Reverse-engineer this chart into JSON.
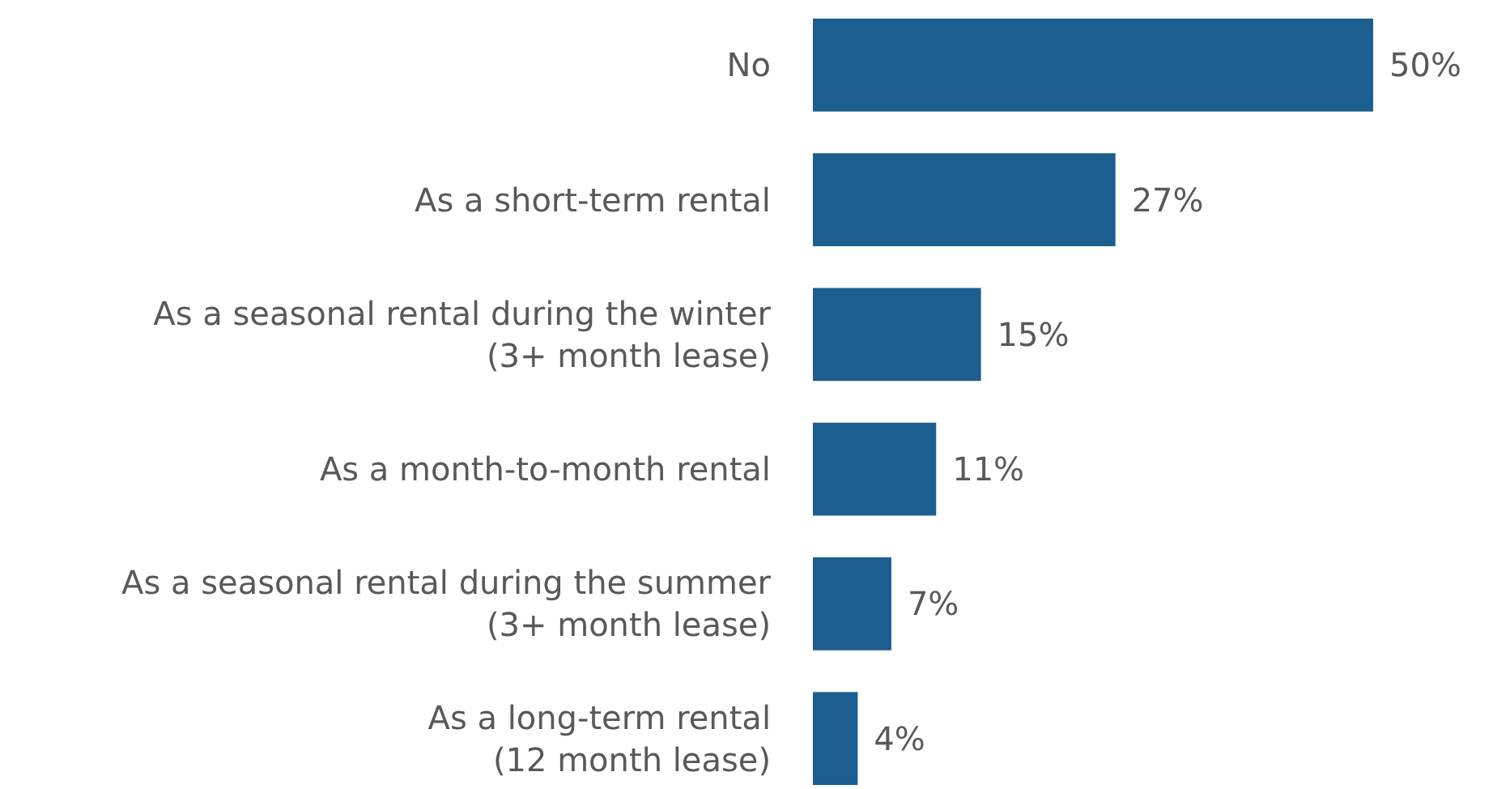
{
  "chart_data": {
    "type": "bar",
    "orientation": "horizontal",
    "categories": [
      "No",
      "As a short-term rental",
      "As a seasonal rental during the winter (3+ month lease)",
      "As a month-to-month rental",
      "As a seasonal rental during the summer (3+ month lease)",
      "As a long-term rental (12 month lease)"
    ],
    "values": [
      50,
      27,
      15,
      11,
      7,
      4
    ],
    "value_labels": [
      "50%",
      "27%",
      "15%",
      "11%",
      "7%",
      "4%"
    ],
    "color": "#1b5e8f"
  }
}
